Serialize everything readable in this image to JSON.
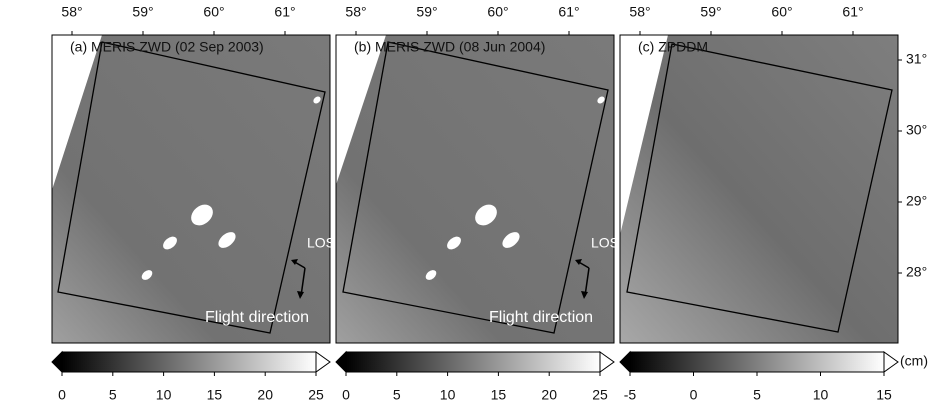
{
  "panels": [
    {
      "title": "(a) MERIS ZWD (02 Sep 2003)",
      "lon_ticks": [
        {
          "value": 58,
          "label": "58°"
        },
        {
          "value": 59,
          "label": "59°"
        },
        {
          "value": 60,
          "label": "60°"
        },
        {
          "value": 61,
          "label": "61°"
        }
      ],
      "los": "LOS",
      "flight": "Flight direction",
      "colorbar": {
        "lim": [
          0,
          25
        ],
        "ticks": [
          0,
          5,
          10,
          15,
          20,
          25
        ]
      }
    },
    {
      "title": "(b) MERIS ZWD (08 Jun 2004)",
      "lon_ticks": [
        {
          "value": 58,
          "label": "58°"
        },
        {
          "value": 59,
          "label": "59°"
        },
        {
          "value": 60,
          "label": "60°"
        },
        {
          "value": 61,
          "label": "61°"
        }
      ],
      "los": "LOS",
      "flight": "Flight direction",
      "colorbar": {
        "lim": [
          0,
          25
        ],
        "ticks": [
          0,
          5,
          10,
          15,
          20,
          25
        ]
      }
    },
    {
      "title": "(c) ZPDDM",
      "lon_ticks": [
        {
          "value": 58,
          "label": "58°"
        },
        {
          "value": 59,
          "label": "59°"
        },
        {
          "value": 60,
          "label": "60°"
        },
        {
          "value": 61,
          "label": "61°"
        }
      ],
      "colorbar": {
        "lim": [
          -5,
          15
        ],
        "ticks": [
          -5,
          0,
          5,
          10,
          15
        ]
      }
    }
  ],
  "lat_ticks": [
    {
      "value": 31,
      "label": "31°"
    },
    {
      "value": 30,
      "label": "30°"
    },
    {
      "value": 29,
      "label": "29°"
    },
    {
      "value": 28,
      "label": "28°"
    }
  ],
  "colorbar_unit": "(cm)"
}
